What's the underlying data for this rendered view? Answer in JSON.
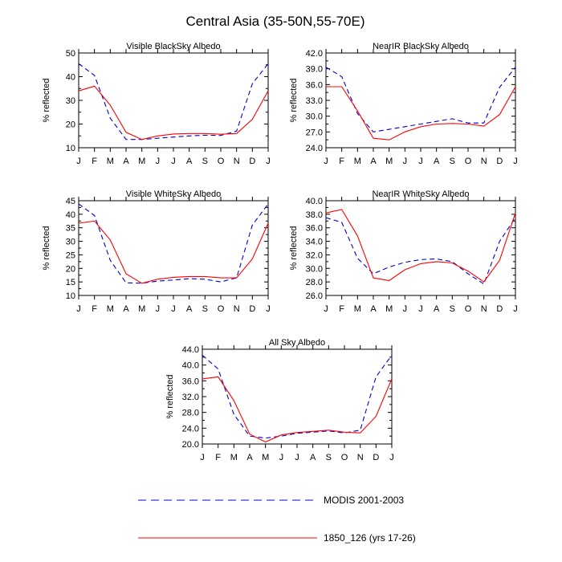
{
  "figure": {
    "title": "Central Asia (35-50N,55-70E)"
  },
  "colors": {
    "modis": "#0000cc",
    "model": "#ff0000",
    "axis": "#000000"
  },
  "legend": [
    {
      "label": "MODIS 2001-2003",
      "style": "dashed",
      "color": "#0000cc"
    },
    {
      "label": "1850_126 (yrs 17-26)",
      "style": "solid",
      "color": "#ff0000"
    }
  ],
  "chart_data": [
    {
      "type": "line",
      "title": "Visible BlackSky Albedo",
      "ylabel": "% reflected",
      "xlabel": "",
      "categories": [
        "J",
        "F",
        "M",
        "A",
        "M",
        "J",
        "J",
        "A",
        "S",
        "O",
        "N",
        "D",
        "J"
      ],
      "ylim": [
        10,
        50
      ],
      "yticks": [
        "10",
        "20",
        "30",
        "40",
        "50"
      ],
      "series": [
        {
          "name": "MODIS 2001-2003",
          "values": [
            45.5,
            40.5,
            22.5,
            13.5,
            13.5,
            14.0,
            14.5,
            15.0,
            15.3,
            15.2,
            17.0,
            37.0,
            45.5
          ]
        },
        {
          "name": "1850_126 (yrs 17-26)",
          "values": [
            34.0,
            36.0,
            28.0,
            16.5,
            13.5,
            15.0,
            15.8,
            16.0,
            16.0,
            15.7,
            16.0,
            22.0,
            34.0
          ]
        }
      ]
    },
    {
      "type": "line",
      "title": "NearIR BlackSky Albedo",
      "ylabel": "% reflected",
      "xlabel": "",
      "categories": [
        "J",
        "F",
        "M",
        "A",
        "M",
        "J",
        "J",
        "A",
        "S",
        "O",
        "N",
        "D",
        "J"
      ],
      "ylim": [
        24,
        42
      ],
      "yticks": [
        "24.0",
        "27.0",
        "30.0",
        "33.0",
        "36.0",
        "39.0",
        "42.0"
      ],
      "series": [
        {
          "name": "MODIS 2001-2003",
          "values": [
            39.3,
            37.5,
            30.5,
            27.0,
            27.5,
            28.0,
            28.5,
            29.0,
            29.5,
            28.7,
            28.7,
            35.5,
            39.3
          ]
        },
        {
          "name": "1850_126 (yrs 17-26)",
          "values": [
            35.6,
            35.6,
            31.0,
            25.8,
            25.5,
            27.0,
            28.0,
            28.5,
            28.6,
            28.5,
            28.1,
            30.3,
            35.6
          ]
        }
      ]
    },
    {
      "type": "line",
      "title": "Visible WhiteSky Albedo",
      "ylabel": "% reflected",
      "xlabel": "",
      "categories": [
        "J",
        "F",
        "M",
        "A",
        "M",
        "J",
        "J",
        "A",
        "S",
        "O",
        "N",
        "D",
        "J"
      ],
      "ylim": [
        10,
        45
      ],
      "yticks": [
        "10",
        "15",
        "20",
        "25",
        "30",
        "35",
        "40",
        "45"
      ],
      "series": [
        {
          "name": "MODIS 2001-2003",
          "values": [
            43.8,
            39.5,
            23.0,
            14.7,
            14.5,
            15.3,
            15.7,
            16.2,
            16.0,
            15.0,
            16.5,
            36.0,
            43.8
          ]
        },
        {
          "name": "1850_126 (yrs 17-26)",
          "values": [
            36.7,
            37.5,
            30.5,
            18.0,
            14.5,
            16.0,
            16.7,
            17.0,
            17.0,
            16.5,
            16.5,
            23.5,
            36.7
          ]
        }
      ]
    },
    {
      "type": "line",
      "title": "NearIR WhiteSky Albedo",
      "ylabel": "% reflected",
      "xlabel": "",
      "categories": [
        "J",
        "F",
        "M",
        "A",
        "M",
        "J",
        "J",
        "A",
        "S",
        "O",
        "N",
        "D",
        "J"
      ],
      "ylim": [
        26,
        40
      ],
      "yticks": [
        "26.0",
        "28.0",
        "30.0",
        "32.0",
        "34.0",
        "36.0",
        "38.0",
        "40.0"
      ],
      "series": [
        {
          "name": "MODIS 2001-2003",
          "values": [
            37.5,
            36.8,
            31.5,
            29.2,
            30.2,
            30.9,
            31.3,
            31.4,
            31.0,
            29.2,
            27.7,
            34.0,
            37.5
          ]
        },
        {
          "name": "1850_126 (yrs 17-26)",
          "values": [
            38.2,
            38.7,
            34.8,
            28.6,
            28.2,
            29.8,
            30.7,
            31.0,
            30.8,
            29.6,
            28.0,
            31.2,
            38.2
          ]
        }
      ]
    },
    {
      "type": "line",
      "title": "All Sky Albedo",
      "ylabel": "% reflected",
      "xlabel": "",
      "categories": [
        "J",
        "F",
        "M",
        "A",
        "M",
        "J",
        "J",
        "A",
        "S",
        "O",
        "N",
        "D",
        "J"
      ],
      "ylim": [
        20,
        44
      ],
      "yticks": [
        "20.0",
        "24.0",
        "28.0",
        "32.0",
        "36.0",
        "40.0",
        "44.0"
      ],
      "series": [
        {
          "name": "MODIS 2001-2003",
          "values": [
            42.5,
            39.0,
            27.5,
            22.0,
            21.5,
            22.0,
            22.7,
            23.0,
            23.3,
            22.8,
            23.5,
            37.0,
            42.5
          ]
        },
        {
          "name": "1850_126 (yrs 17-26)",
          "values": [
            36.5,
            37.0,
            31.0,
            22.5,
            20.5,
            22.3,
            22.9,
            23.2,
            23.5,
            23.0,
            22.8,
            27.0,
            36.5
          ]
        }
      ]
    }
  ]
}
